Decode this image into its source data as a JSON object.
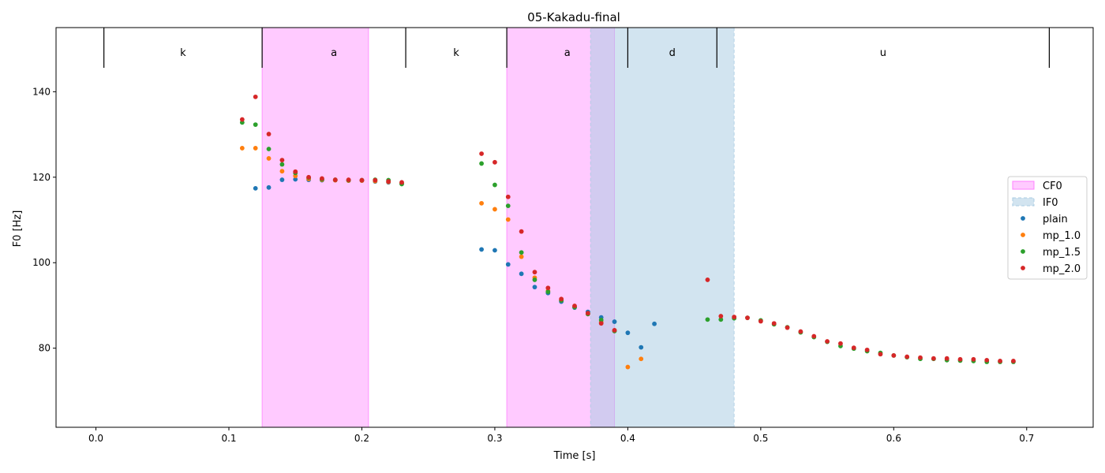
{
  "chart_data": {
    "type": "scatter",
    "title": "05-Kakadu-final",
    "xlabel": "Time [s]",
    "ylabel": "F0 [Hz]",
    "xlim": [
      -0.03,
      0.75
    ],
    "ylim": [
      61.5,
      155
    ],
    "x_ticks": [
      0.0,
      0.1,
      0.2,
      0.3,
      0.4,
      0.5,
      0.6,
      0.7
    ],
    "x_tick_labels": [
      "0.0",
      "0.1",
      "0.2",
      "0.3",
      "0.4",
      "0.5",
      "0.6",
      "0.7"
    ],
    "y_ticks": [
      80,
      100,
      120,
      140
    ],
    "y_tick_labels": [
      "80",
      "100",
      "120",
      "140"
    ],
    "grid": false,
    "legend_position": "right",
    "segment_boundaries": [
      0.006,
      0.125,
      0.233,
      0.309,
      0.4,
      0.467,
      0.717
    ],
    "segments": [
      {
        "label": "k",
        "start": 0.006,
        "end": 0.125
      },
      {
        "label": "a",
        "start": 0.125,
        "end": 0.233
      },
      {
        "label": "k",
        "start": 0.233,
        "end": 0.309
      },
      {
        "label": "a",
        "start": 0.309,
        "end": 0.4
      },
      {
        "label": "d",
        "start": 0.4,
        "end": 0.467
      },
      {
        "label": "u",
        "start": 0.467,
        "end": 0.717
      }
    ],
    "regions": [
      {
        "name": "CF0",
        "start": 0.125,
        "end": 0.205,
        "color": "#ff80ff"
      },
      {
        "name": "CF0",
        "start": 0.309,
        "end": 0.39,
        "color": "#ff80ff"
      },
      {
        "name": "IF0",
        "start": 0.372,
        "end": 0.48,
        "color": "#a9cbe2"
      }
    ],
    "series": [
      {
        "name": "plain",
        "color": "#1f77b4",
        "points": [
          [
            0.12,
            117.4
          ],
          [
            0.13,
            117.6
          ],
          [
            0.14,
            119.4
          ],
          [
            0.15,
            119.5
          ],
          [
            0.16,
            119.4
          ],
          [
            0.17,
            119.3
          ],
          [
            0.18,
            119.3
          ],
          [
            0.19,
            119.2
          ],
          [
            0.2,
            119.2
          ],
          [
            0.21,
            119.0
          ],
          [
            0.22,
            118.8
          ],
          [
            0.23,
            118.5
          ],
          [
            0.29,
            103.1
          ],
          [
            0.3,
            102.9
          ],
          [
            0.31,
            99.6
          ],
          [
            0.32,
            97.4
          ],
          [
            0.33,
            94.3
          ],
          [
            0.34,
            92.9
          ],
          [
            0.35,
            90.9
          ],
          [
            0.36,
            89.5
          ],
          [
            0.37,
            88.5
          ],
          [
            0.38,
            87.2
          ],
          [
            0.39,
            86.2
          ],
          [
            0.4,
            83.6
          ],
          [
            0.41,
            80.2
          ],
          [
            0.42,
            85.7
          ]
        ]
      },
      {
        "name": "mp_1.0",
        "color": "#ff7f0e",
        "points": [
          [
            0.11,
            126.8
          ],
          [
            0.12,
            126.8
          ],
          [
            0.13,
            124.4
          ],
          [
            0.14,
            121.4
          ],
          [
            0.15,
            120.3
          ],
          [
            0.16,
            119.6
          ],
          [
            0.17,
            119.4
          ],
          [
            0.18,
            119.3
          ],
          [
            0.19,
            119.2
          ],
          [
            0.2,
            119.2
          ],
          [
            0.21,
            119.1
          ],
          [
            0.22,
            118.9
          ],
          [
            0.23,
            118.6
          ],
          [
            0.29,
            113.9
          ],
          [
            0.3,
            112.5
          ],
          [
            0.31,
            110.1
          ],
          [
            0.32,
            101.4
          ],
          [
            0.33,
            96.5
          ],
          [
            0.34,
            93.4
          ],
          [
            0.35,
            91.2
          ],
          [
            0.36,
            89.7
          ],
          [
            0.37,
            88.0
          ],
          [
            0.38,
            86.1
          ],
          [
            0.39,
            84.1
          ],
          [
            0.4,
            75.6
          ],
          [
            0.41,
            77.5
          ]
        ]
      },
      {
        "name": "mp_1.5",
        "color": "#2ca02c",
        "points": [
          [
            0.11,
            132.8
          ],
          [
            0.12,
            132.3
          ],
          [
            0.13,
            126.6
          ],
          [
            0.14,
            123.0
          ],
          [
            0.15,
            121.0
          ],
          [
            0.16,
            119.9
          ],
          [
            0.17,
            119.5
          ],
          [
            0.18,
            119.4
          ],
          [
            0.19,
            119.3
          ],
          [
            0.2,
            119.3
          ],
          [
            0.21,
            119.4
          ],
          [
            0.22,
            119.3
          ],
          [
            0.23,
            118.4
          ],
          [
            0.29,
            123.2
          ],
          [
            0.3,
            118.2
          ],
          [
            0.31,
            113.3
          ],
          [
            0.32,
            102.4
          ],
          [
            0.33,
            96.0
          ],
          [
            0.34,
            93.2
          ],
          [
            0.35,
            91.2
          ],
          [
            0.36,
            89.6
          ],
          [
            0.37,
            88.0
          ],
          [
            0.38,
            86.6
          ],
          [
            0.39,
            84.0
          ],
          [
            0.46,
            86.7
          ],
          [
            0.47,
            86.7
          ],
          [
            0.48,
            87.0
          ],
          [
            0.49,
            87.1
          ],
          [
            0.5,
            86.5
          ],
          [
            0.51,
            85.6
          ],
          [
            0.52,
            84.9
          ],
          [
            0.53,
            83.7
          ],
          [
            0.54,
            82.6
          ],
          [
            0.55,
            81.5
          ],
          [
            0.56,
            80.5
          ],
          [
            0.57,
            79.9
          ],
          [
            0.58,
            79.3
          ],
          [
            0.59,
            78.9
          ],
          [
            0.6,
            78.3
          ],
          [
            0.61,
            77.9
          ],
          [
            0.62,
            77.5
          ],
          [
            0.63,
            77.5
          ],
          [
            0.64,
            77.2
          ],
          [
            0.65,
            77.1
          ],
          [
            0.66,
            77.0
          ],
          [
            0.67,
            76.8
          ],
          [
            0.68,
            76.8
          ],
          [
            0.69,
            76.8
          ]
        ]
      },
      {
        "name": "mp_2.0",
        "color": "#d62728",
        "points": [
          [
            0.11,
            133.5
          ],
          [
            0.12,
            138.8
          ],
          [
            0.13,
            130.1
          ],
          [
            0.14,
            124.0
          ],
          [
            0.15,
            121.3
          ],
          [
            0.16,
            120.0
          ],
          [
            0.17,
            119.7
          ],
          [
            0.18,
            119.4
          ],
          [
            0.19,
            119.4
          ],
          [
            0.2,
            119.3
          ],
          [
            0.21,
            119.3
          ],
          [
            0.22,
            119.0
          ],
          [
            0.23,
            118.8
          ],
          [
            0.29,
            125.5
          ],
          [
            0.3,
            123.5
          ],
          [
            0.31,
            115.4
          ],
          [
            0.32,
            107.3
          ],
          [
            0.33,
            97.8
          ],
          [
            0.34,
            94.1
          ],
          [
            0.35,
            91.5
          ],
          [
            0.36,
            89.9
          ],
          [
            0.37,
            88.2
          ],
          [
            0.38,
            85.8
          ],
          [
            0.39,
            84.2
          ],
          [
            0.46,
            96.0
          ],
          [
            0.47,
            87.5
          ],
          [
            0.48,
            87.3
          ],
          [
            0.49,
            87.1
          ],
          [
            0.5,
            86.3
          ],
          [
            0.51,
            85.8
          ],
          [
            0.52,
            84.8
          ],
          [
            0.53,
            83.9
          ],
          [
            0.54,
            82.8
          ],
          [
            0.55,
            81.6
          ],
          [
            0.56,
            81.1
          ],
          [
            0.57,
            80.1
          ],
          [
            0.58,
            79.6
          ],
          [
            0.59,
            78.6
          ],
          [
            0.6,
            78.3
          ],
          [
            0.61,
            78.0
          ],
          [
            0.62,
            77.8
          ],
          [
            0.63,
            77.6
          ],
          [
            0.64,
            77.6
          ],
          [
            0.65,
            77.4
          ],
          [
            0.66,
            77.4
          ],
          [
            0.67,
            77.2
          ],
          [
            0.68,
            77.0
          ],
          [
            0.69,
            77.0
          ]
        ]
      }
    ]
  }
}
